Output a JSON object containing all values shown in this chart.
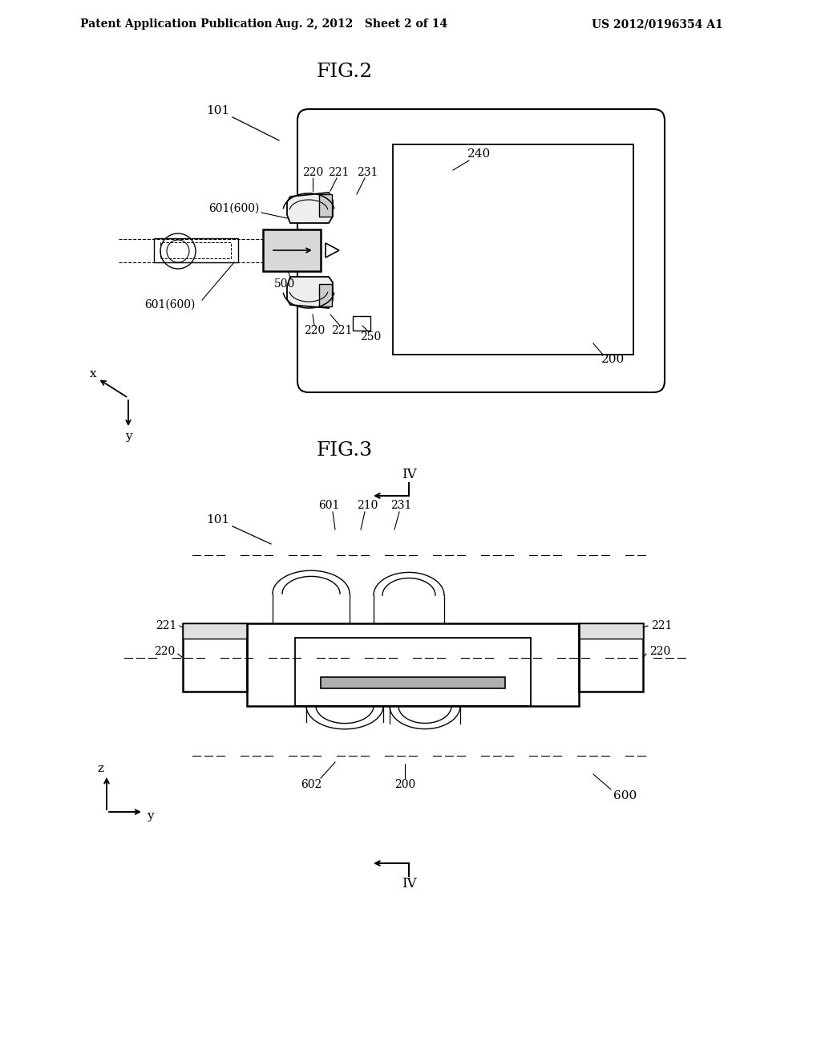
{
  "bg_color": "#ffffff",
  "header_left": "Patent Application Publication",
  "header_mid": "Aug. 2, 2012   Sheet 2 of 14",
  "header_right": "US 2012/0196354 A1",
  "fig2_title": "FIG.2",
  "fig3_title": "FIG.3",
  "line_color": "#000000",
  "text_color": "#000000"
}
